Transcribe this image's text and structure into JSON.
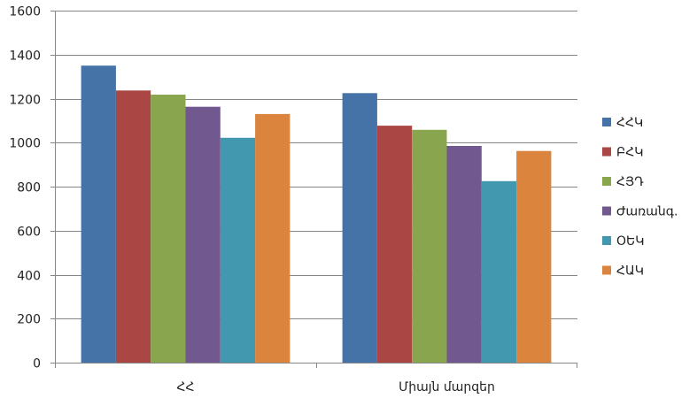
{
  "chart_data": {
    "type": "bar",
    "categories": [
      "ՀՀ",
      "Միայն մարզեր"
    ],
    "series": [
      {
        "name": "ՀՀԿ",
        "values": [
          1350,
          1225
        ],
        "color": "#4572A7"
      },
      {
        "name": "ԲՀԿ",
        "values": [
          1237,
          1077
        ],
        "color": "#AA4643"
      },
      {
        "name": "ՀՅԴ",
        "values": [
          1218,
          1058
        ],
        "color": "#89A54E"
      },
      {
        "name": "Ժառանգ.",
        "values": [
          1163,
          985
        ],
        "color": "#71588F"
      },
      {
        "name": "ՕԵԿ",
        "values": [
          1022,
          825
        ],
        "color": "#4198AF"
      },
      {
        "name": "ՀԱԿ",
        "values": [
          1130,
          962
        ],
        "color": "#DB843D"
      }
    ],
    "yticks": [
      0,
      200,
      400,
      600,
      800,
      1000,
      1200,
      1400,
      1600
    ],
    "ylim": [
      0,
      1600
    ],
    "grid": true,
    "legend": "right"
  }
}
